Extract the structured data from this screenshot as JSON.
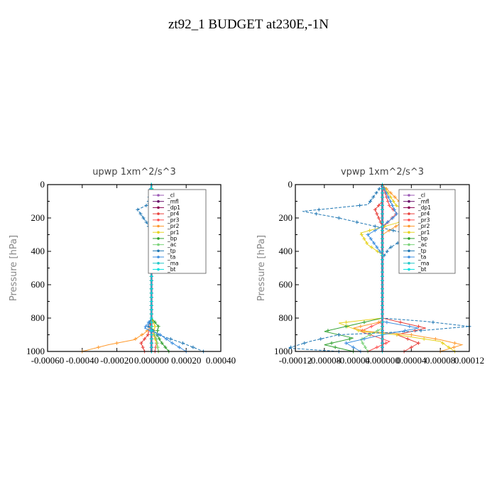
{
  "figure_title": "zt92_1  BUDGET at230E,-1N",
  "chart_data": [
    {
      "type": "line",
      "title": "upwp   1xm^2/s^3",
      "ylabel": "Pressure [hPa]",
      "xlabel": "",
      "xlim": [
        -0.0006,
        0.0004
      ],
      "ylim": [
        1000,
        0
      ],
      "x_tick_labels": [
        "-0.00060",
        "-0.00040",
        "-0.00020",
        "0.000000",
        "0.00020",
        "0.00040"
      ],
      "x_tick_values": [
        -0.0006,
        -0.0004,
        -0.0002,
        0.0,
        0.0002,
        0.0004
      ],
      "y_ticks": [
        0,
        200,
        400,
        600,
        800,
        1000
      ],
      "legend_position": "upper-right",
      "series": [
        {
          "name": "_cl",
          "color": "#9b59b6",
          "points": [
            [
              0.0,
              0
            ],
            [
              0.0,
              1000
            ]
          ]
        },
        {
          "name": "_mfl",
          "color": "#6a0d6a",
          "points": [
            [
              0.0,
              0
            ],
            [
              0.0,
              1000
            ]
          ]
        },
        {
          "name": "_dp1",
          "color": "#8b0050",
          "points": [
            [
              0.0,
              0
            ],
            [
              0.0,
              1000
            ]
          ]
        },
        {
          "name": "_pr4",
          "color": "#e8413c",
          "points": [
            [
              0.0,
              0
            ],
            [
              0.0,
              100
            ],
            [
              1e-05,
              150
            ],
            [
              1e-05,
              180
            ],
            [
              0.0,
              250
            ],
            [
              0.0,
              800
            ],
            [
              -2e-05,
              900
            ],
            [
              -6e-05,
              950
            ],
            [
              -4e-05,
              1000
            ]
          ]
        },
        {
          "name": "_pr3",
          "color": "#ff5050",
          "points": [
            [
              0.0,
              0
            ],
            [
              0.0,
              120
            ],
            [
              2e-05,
              160
            ],
            [
              0.0,
              250
            ],
            [
              0.0,
              850
            ],
            [
              3e-05,
              940
            ],
            [
              2e-05,
              1000
            ]
          ]
        },
        {
          "name": "_pr2",
          "color": "#ff9a2e",
          "points": [
            [
              0.0,
              0
            ],
            [
              0.0,
              120
            ],
            [
              4e-05,
              140
            ],
            [
              5e-05,
              170
            ],
            [
              2e-05,
              220
            ],
            [
              0.0,
              300
            ],
            [
              0.0,
              850
            ],
            [
              -4e-05,
              890
            ],
            [
              -0.0001,
              930
            ],
            [
              -0.00025,
              960
            ],
            [
              -0.0004,
              1000
            ]
          ]
        },
        {
          "name": "_pr1",
          "color": "#e6d21e",
          "points": [
            [
              0.0,
              0
            ],
            [
              1e-05,
              120
            ],
            [
              6e-05,
              160
            ],
            [
              2e-05,
              240
            ],
            [
              0.0,
              300
            ],
            [
              0.0,
              800
            ],
            [
              2e-05,
              850
            ],
            [
              1e-05,
              900
            ],
            [
              3e-05,
              950
            ],
            [
              4e-05,
              1000
            ]
          ]
        },
        {
          "name": "_bp",
          "color": "#2ea02e",
          "points": [
            [
              0.0,
              0
            ],
            [
              0.0,
              800
            ],
            [
              4e-05,
              850
            ],
            [
              3e-05,
              900
            ],
            [
              6e-05,
              950
            ],
            [
              0.0001,
              1000
            ]
          ]
        },
        {
          "name": "_ac",
          "color": "#7cd37c",
          "points": [
            [
              0.0,
              0
            ],
            [
              0.0,
              850
            ],
            [
              3e-05,
              930
            ],
            [
              4e-05,
              1000
            ]
          ]
        },
        {
          "name": "_tp",
          "color": "#1f77b4",
          "points": [
            [
              0.0,
              0
            ],
            [
              -2e-05,
              120
            ],
            [
              -8e-05,
              150
            ],
            [
              -6e-05,
              180
            ],
            [
              -2e-05,
              240
            ],
            [
              0.0,
              300
            ],
            [
              0.0,
              800
            ],
            [
              -2e-05,
              850
            ],
            [
              4e-05,
              900
            ],
            [
              0.00018,
              950
            ],
            [
              0.0003,
              1000
            ]
          ]
        },
        {
          "name": "_ta",
          "color": "#3d8fe0",
          "points": [
            [
              0.0,
              0
            ],
            [
              -1e-05,
              200
            ],
            [
              0.0,
              400
            ],
            [
              0.0,
              800
            ],
            [
              -4e-05,
              860
            ],
            [
              5e-05,
              900
            ],
            [
              0.00012,
              950
            ],
            [
              0.0002,
              1000
            ]
          ]
        },
        {
          "name": "_ma",
          "color": "#25c9c9",
          "points": [
            [
              0.0,
              0
            ],
            [
              0.0,
              1000
            ]
          ]
        },
        {
          "name": "_bt",
          "color": "#00e0e0",
          "points": [
            [
              0.0,
              0
            ],
            [
              0.0,
              1000
            ]
          ]
        }
      ]
    },
    {
      "type": "line",
      "title": "vpwp   1xm^2/s^3",
      "ylabel": "Pressure [hPa]",
      "xlabel": "",
      "xlim": [
        -0.00012,
        0.00012
      ],
      "ylim": [
        1000,
        0
      ],
      "x_tick_labels": [
        "-0.00012",
        "-0.00008",
        "-0.00004",
        "0.000000",
        "0.00004",
        "0.00008",
        "0.00012"
      ],
      "x_tick_values": [
        -0.00012,
        -8e-05,
        -4e-05,
        0.0,
        4e-05,
        8e-05,
        0.00012
      ],
      "y_ticks": [
        0,
        200,
        400,
        600,
        800,
        1000
      ],
      "legend_position": "upper-right",
      "series": [
        {
          "name": "_cl",
          "color": "#9b59b6",
          "points": [
            [
              0.0,
              0
            ],
            [
              0.0,
              1000
            ]
          ]
        },
        {
          "name": "_mfl",
          "color": "#6a0d6a",
          "points": [
            [
              0.0,
              0
            ],
            [
              0.0,
              1000
            ]
          ]
        },
        {
          "name": "_dp1",
          "color": "#8b0050",
          "points": [
            [
              0.0,
              0
            ],
            [
              0.0,
              1000
            ]
          ]
        },
        {
          "name": "_pr4",
          "color": "#e8413c",
          "points": [
            [
              0.0,
              0
            ],
            [
              0.0,
              100
            ],
            [
              -1e-05,
              150
            ],
            [
              0.0,
              250
            ],
            [
              0.0,
              800
            ],
            [
              6e-05,
              860
            ],
            [
              2e-05,
              900
            ],
            [
              5e-05,
              950
            ],
            [
              3e-05,
              1000
            ]
          ]
        },
        {
          "name": "_pr3",
          "color": "#ff5050",
          "points": [
            [
              0.0,
              0
            ],
            [
              1e-05,
              130
            ],
            [
              2e-05,
              170
            ],
            [
              0.0,
              260
            ],
            [
              0.0,
              820
            ],
            [
              -3e-05,
              880
            ],
            [
              1e-05,
              940
            ],
            [
              -2e-05,
              1000
            ]
          ]
        },
        {
          "name": "_pr2",
          "color": "#ff9a2e",
          "points": [
            [
              0.0,
              0
            ],
            [
              3e-05,
              130
            ],
            [
              8e-05,
              170
            ],
            [
              3e-05,
              220
            ],
            [
              0.0,
              300
            ],
            [
              0.0,
              820
            ],
            [
              -4e-05,
              860
            ],
            [
              -2e-05,
              880
            ],
            [
              4e-05,
              900
            ],
            [
              8e-05,
              930
            ],
            [
              0.00011,
              960
            ],
            [
              8e-05,
              1000
            ]
          ]
        },
        {
          "name": "_pr1",
          "color": "#e6d21e",
          "points": [
            [
              0.0,
              0
            ],
            [
              2e-05,
              130
            ],
            [
              7e-05,
              170
            ],
            [
              2e-05,
              230
            ],
            [
              -3e-05,
              290
            ],
            [
              -2e-05,
              360
            ],
            [
              0.0,
              420
            ],
            [
              0.0,
              800
            ],
            [
              -6e-05,
              830
            ],
            [
              -3e-05,
              880
            ],
            [
              2e-05,
              900
            ],
            [
              8e-05,
              940
            ],
            [
              0.0001,
              1000
            ]
          ]
        },
        {
          "name": "_bp",
          "color": "#2ea02e",
          "points": [
            [
              0.0,
              0
            ],
            [
              0.0,
              800
            ],
            [
              -4e-05,
              840
            ],
            [
              -8e-05,
              880
            ],
            [
              -4e-05,
              920
            ],
            [
              -8e-05,
              960
            ],
            [
              -4e-05,
              1000
            ]
          ]
        },
        {
          "name": "_ac",
          "color": "#7cd37c",
          "points": [
            [
              0.0,
              0
            ],
            [
              0.0,
              860
            ],
            [
              -3e-05,
              930
            ],
            [
              -2e-05,
              1000
            ]
          ]
        },
        {
          "name": "_tp",
          "color": "#1f77b4",
          "points": [
            [
              0.0,
              0
            ],
            [
              -2e-05,
              120
            ],
            [
              -0.00011,
              160
            ],
            [
              -6e-05,
              200
            ],
            [
              0.0,
              260
            ],
            [
              4e-05,
              300
            ],
            [
              1e-05,
              380
            ],
            [
              0.0,
              440
            ],
            [
              0.0,
              800
            ],
            [
              6e-05,
              820
            ],
            [
              0.00012,
              850
            ],
            [
              4e-05,
              880
            ],
            [
              -6e-05,
              900
            ],
            [
              -0.0001,
              940
            ],
            [
              -0.00013,
              980
            ],
            [
              -6e-05,
              1000
            ]
          ]
        },
        {
          "name": "_ta",
          "color": "#3d8fe0",
          "points": [
            [
              0.0,
              0
            ],
            [
              2e-05,
              180
            ],
            [
              0.0,
              250
            ],
            [
              -2e-05,
              300
            ],
            [
              0.0,
              420
            ],
            [
              0.0,
              820
            ],
            [
              5e-05,
              860
            ],
            [
              0.0,
              900
            ],
            [
              -5e-05,
              950
            ],
            [
              -3e-05,
              1000
            ]
          ]
        },
        {
          "name": "_ma",
          "color": "#25c9c9",
          "points": [
            [
              0.0,
              0
            ],
            [
              0.0,
              1000
            ]
          ]
        },
        {
          "name": "_bt",
          "color": "#00e0e0",
          "points": [
            [
              0.0,
              0
            ],
            [
              0.0,
              1000
            ]
          ]
        }
      ]
    }
  ]
}
